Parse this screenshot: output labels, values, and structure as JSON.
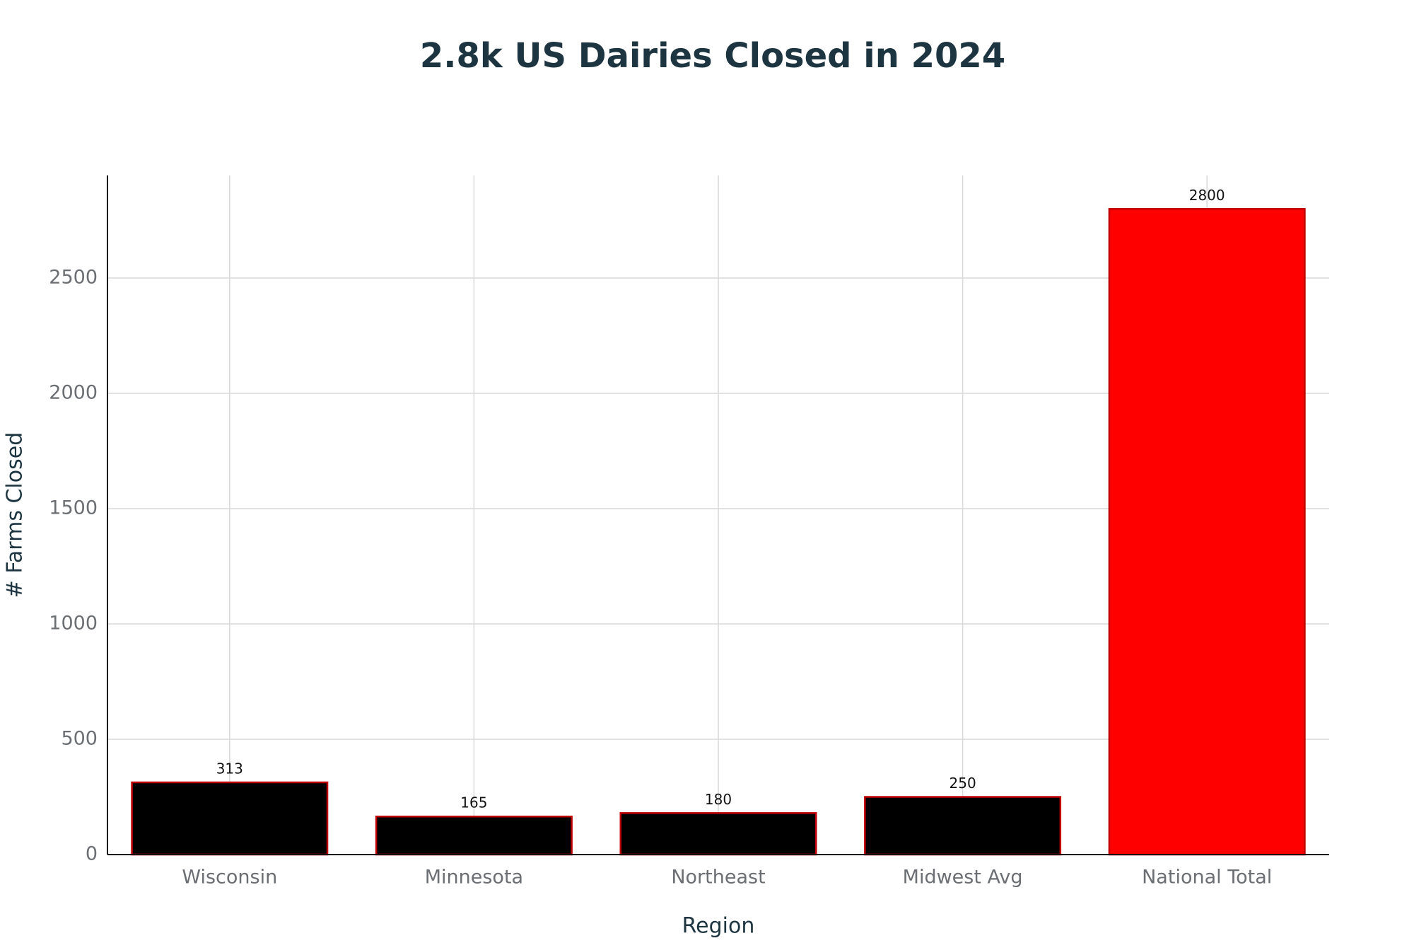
{
  "chart_data": {
    "type": "bar",
    "title": "2.8k US Dairies Closed in 2024",
    "x_label": "Region",
    "y_label": "# Farms Closed",
    "categories": [
      "Wisconsin",
      "Minnesota",
      "Northeast",
      "Midwest Avg",
      "National Total"
    ],
    "values": [
      313,
      165,
      180,
      250,
      2800
    ],
    "colors": [
      "#000000",
      "#000000",
      "#000000",
      "#000000",
      "#ff0000"
    ],
    "edge_color": "#c00000",
    "ylim": [
      0,
      2945
    ],
    "yticks": [
      0,
      500,
      1000,
      1500,
      2000,
      2500
    ],
    "grid": true
  }
}
